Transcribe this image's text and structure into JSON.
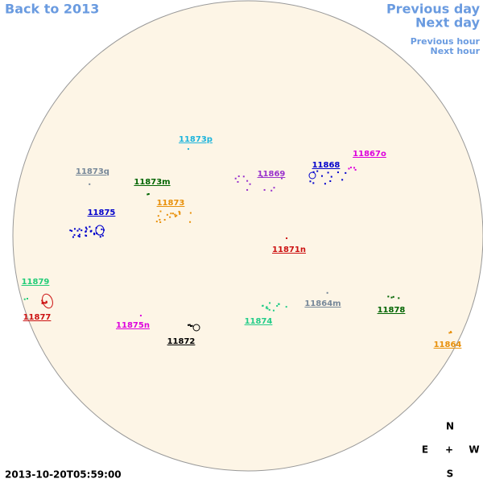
{
  "nav": {
    "back": "Back to 2013",
    "previous_day": "Previous day",
    "next_day": "Next day",
    "previous_hour": "Previous hour",
    "next_hour": "Next hour"
  },
  "regions": [
    {
      "label": "11873p",
      "color": "#1cb4dc"
    },
    {
      "label": "11873q",
      "color": "#778899"
    },
    {
      "label": "11873m",
      "color": "#006400"
    },
    {
      "label": "11873",
      "color": "#e8900a"
    },
    {
      "label": "11875",
      "color": "#0000cc"
    },
    {
      "label": "11869",
      "color": "#9932cc"
    },
    {
      "label": "11868",
      "color": "#0000cc"
    },
    {
      "label": "11867o",
      "color": "#dd00dd"
    },
    {
      "label": "11871n",
      "color": "#cc1111"
    },
    {
      "label": "11879",
      "color": "#22cc77"
    },
    {
      "label": "11877",
      "color": "#cc1111"
    },
    {
      "label": "11875n",
      "color": "#dd00dd"
    },
    {
      "label": "11872",
      "color": "#000000"
    },
    {
      "label": "11874",
      "color": "#22cc88"
    },
    {
      "label": "11864m",
      "color": "#778899"
    },
    {
      "label": "11878",
      "color": "#006400"
    },
    {
      "label": "11864",
      "color": "#e8900a"
    }
  ],
  "compass": {
    "north": "N",
    "east": "E",
    "center": "+",
    "west": "W",
    "south": "S"
  },
  "timestamp": "2013-10-20T05:59:00"
}
